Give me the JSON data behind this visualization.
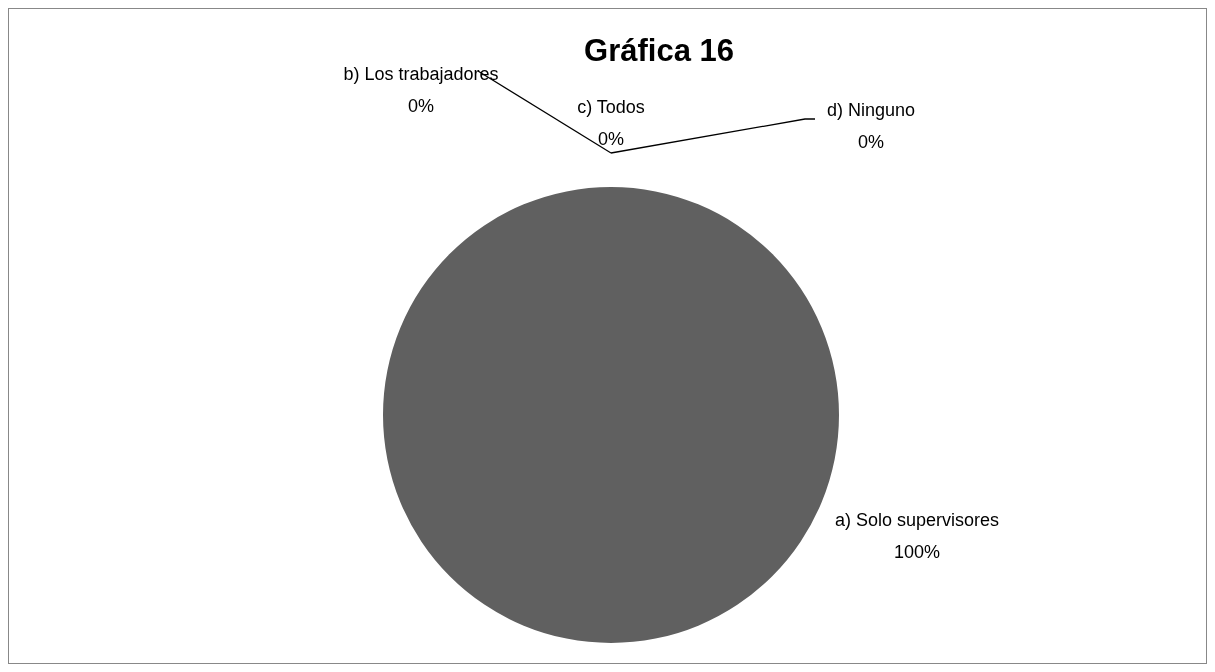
{
  "chart_data": {
    "type": "pie",
    "title": "Gráfica 16",
    "categories": [
      "a) Solo supervisores",
      "b) Los trabajadores",
      "c) Todos",
      "d) Ninguno"
    ],
    "values": [
      100,
      0,
      0,
      0
    ],
    "value_labels": [
      "100%",
      "0%",
      "0%",
      "0%"
    ],
    "colors": [
      "#606060",
      "#404040",
      "#808080",
      "#a0a0a0"
    ],
    "legend": false
  }
}
